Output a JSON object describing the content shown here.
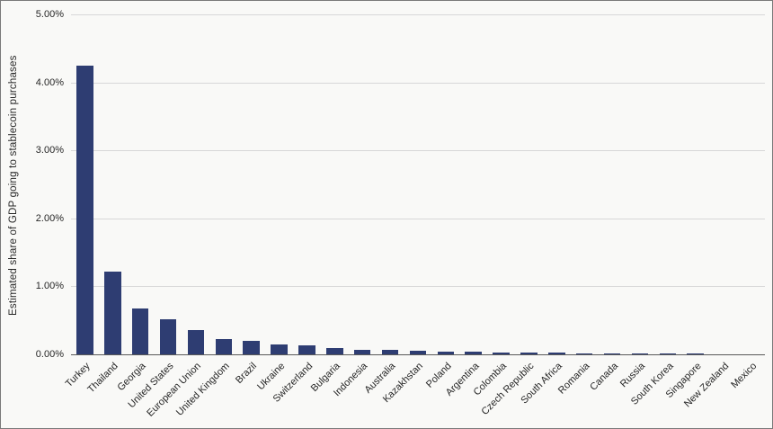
{
  "figure": {
    "background": "#f9f9f7",
    "border_color": "#7a7a7a"
  },
  "chart_data": {
    "type": "bar",
    "title": "",
    "xlabel": "",
    "ylabel": "Estimated share of GDP going to stablecoin purchases",
    "ylim": [
      0,
      5
    ],
    "grid": "horizontal",
    "legend": "none",
    "bar_color": "#2e3d72",
    "yticks": [
      {
        "value": 0,
        "label": "0.00%"
      },
      {
        "value": 1,
        "label": "1.00%"
      },
      {
        "value": 2,
        "label": "2.00%"
      },
      {
        "value": 3,
        "label": "3.00%"
      },
      {
        "value": 4,
        "label": "4.00%"
      },
      {
        "value": 5,
        "label": "5.00%"
      }
    ],
    "categories": [
      "Turkey",
      "Thailand",
      "Georgia",
      "United States",
      "European Union",
      "United Kingdom",
      "Brazil",
      "Ukraine",
      "Switzerland",
      "Bulgaria",
      "Indonesia",
      "Australia",
      "Kazakhstan",
      "Poland",
      "Argentina",
      "Colombia",
      "Czech Republic",
      "South Africa",
      "Romania",
      "Canada",
      "Russia",
      "South Korea",
      "Singapore",
      "New Zealand",
      "Mexico"
    ],
    "values": [
      4.25,
      1.22,
      0.68,
      0.52,
      0.36,
      0.22,
      0.2,
      0.15,
      0.13,
      0.09,
      0.07,
      0.06,
      0.05,
      0.04,
      0.04,
      0.03,
      0.03,
      0.025,
      0.02,
      0.02,
      0.015,
      0.013,
      0.01,
      0.005,
      0.004
    ]
  }
}
